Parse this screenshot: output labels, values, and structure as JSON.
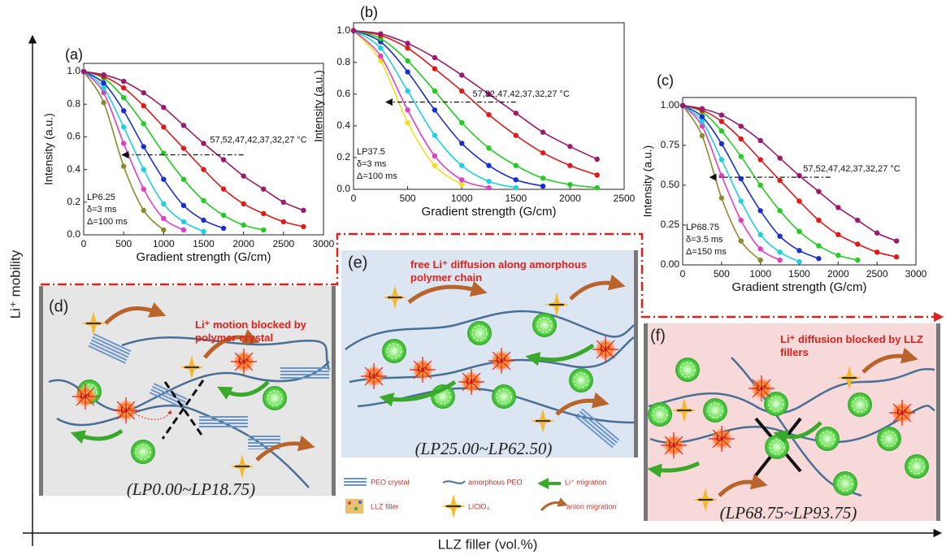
{
  "chart_data": [
    {
      "type": "line",
      "panel": "(a)",
      "xlabel": "Gradient strength (G/cm)",
      "ylabel": "Intensity (a.u.)",
      "annotation": "57,52,47,42,37,32,27 °C",
      "notes": [
        "LP6.25",
        "δ=3 ms",
        "Δ=100 ms"
      ],
      "x": [
        0,
        250,
        500,
        750,
        1000,
        1250,
        1500,
        1750,
        2000,
        2250,
        2500,
        2750
      ],
      "series": [
        {
          "color": "#8a8a2e",
          "values": [
            1,
            0.81,
            0.42,
            0.15,
            0.03,
            null,
            null,
            null,
            null,
            null,
            null,
            null
          ]
        },
        {
          "color": "#e040c0",
          "values": [
            1,
            0.87,
            0.56,
            0.28,
            0.1,
            0.03,
            null,
            null,
            null,
            null,
            null,
            null
          ]
        },
        {
          "color": "#20d0e0",
          "values": [
            1,
            0.9,
            0.66,
            0.4,
            0.19,
            0.08,
            0.02,
            null,
            null,
            null,
            null,
            null
          ]
        },
        {
          "color": "#1a2fd0",
          "values": [
            1,
            0.93,
            0.76,
            0.54,
            0.34,
            0.18,
            0.09,
            0.04,
            null,
            null,
            null,
            null
          ]
        },
        {
          "color": "#22cc22",
          "values": [
            1,
            0.96,
            0.84,
            0.68,
            0.5,
            0.34,
            0.21,
            0.12,
            0.06,
            0.03,
            null,
            null
          ]
        },
        {
          "color": "#e01a1a",
          "values": [
            1,
            0.97,
            0.9,
            0.79,
            0.66,
            0.53,
            0.4,
            0.28,
            0.19,
            0.13,
            0.08,
            0.05
          ]
        },
        {
          "color": "#9c1a6e",
          "values": [
            1,
            0.98,
            0.94,
            0.87,
            0.78,
            0.67,
            0.56,
            0.46,
            0.36,
            0.28,
            0.2,
            0.15
          ]
        }
      ],
      "xlim": [
        0,
        3000
      ],
      "xticks": [
        0,
        500,
        1000,
        1500,
        2000,
        2500,
        3000
      ],
      "ylim": [
        0,
        1.05
      ],
      "yticks": [
        {
          "value": 0,
          "label": "0.0"
        },
        {
          "value": 0.2,
          "label": "0.2"
        },
        {
          "value": 0.4,
          "label": "0.4"
        },
        {
          "value": 0.6,
          "label": "0.6"
        },
        {
          "value": 0.8,
          "label": "0.8"
        },
        {
          "value": 1,
          "label": "1.0"
        }
      ]
    },
    {
      "type": "line",
      "panel": "(b)",
      "xlabel": "Gradient strength (G/cm)",
      "ylabel": "Intensity (a.u.)",
      "annotation": "57,52,47,42,37,32,27 °C",
      "notes": [
        "LP37.5",
        "δ=3 ms",
        "Δ=100 ms"
      ],
      "x": [
        0,
        250,
        500,
        750,
        1000,
        1250,
        1500,
        1750,
        2000,
        2250
      ],
      "series": [
        {
          "color": "#f0e020",
          "values": [
            1,
            0.81,
            0.42,
            0.15,
            0.03,
            null,
            null,
            null,
            null,
            null
          ]
        },
        {
          "color": "#e040c0",
          "values": [
            1,
            0.84,
            0.5,
            0.21,
            0.06,
            0.01,
            null,
            null,
            null,
            null
          ]
        },
        {
          "color": "#20d0e0",
          "values": [
            1,
            0.89,
            0.62,
            0.34,
            0.15,
            0.05,
            0.01,
            null,
            null,
            null
          ]
        },
        {
          "color": "#1a2fd0",
          "values": [
            1,
            0.93,
            0.74,
            0.5,
            0.29,
            0.15,
            0.06,
            0.02,
            null,
            null
          ]
        },
        {
          "color": "#22cc22",
          "values": [
            1,
            0.95,
            0.81,
            0.62,
            0.42,
            0.26,
            0.15,
            0.07,
            0.03,
            0.01
          ]
        },
        {
          "color": "#e01a1a",
          "values": [
            1,
            0.97,
            0.89,
            0.76,
            0.62,
            0.47,
            0.34,
            0.23,
            0.15,
            0.09
          ]
        },
        {
          "color": "#9c1a6e",
          "values": [
            1,
            0.98,
            0.92,
            0.83,
            0.72,
            0.6,
            0.48,
            0.36,
            0.27,
            0.19
          ]
        }
      ],
      "xlim": [
        0,
        2500
      ],
      "xticks": [
        0,
        500,
        1000,
        1500,
        2000,
        2500
      ],
      "ylim": [
        0,
        1.05
      ],
      "yticks": [
        {
          "value": 0,
          "label": "0.0"
        },
        {
          "value": 0.2,
          "label": "0.2"
        },
        {
          "value": 0.4,
          "label": "0.4"
        },
        {
          "value": 0.6,
          "label": "0.6"
        },
        {
          "value": 0.8,
          "label": "0.8"
        },
        {
          "value": 1,
          "label": "1.0"
        }
      ]
    },
    {
      "type": "line",
      "panel": "(c)",
      "xlabel": "Gradient strength (G/cm)",
      "ylabel": "Intensity (a.u.)",
      "annotation": "57,52,47,42,37,32,27 °C",
      "notes": [
        "LP68.75",
        "δ=3.5 ms",
        "Δ=150 ms"
      ],
      "x": [
        0,
        250,
        500,
        750,
        1000,
        1250,
        1500,
        1750,
        2000,
        2250,
        2500,
        2750
      ],
      "series": [
        {
          "color": "#8a8a2e",
          "values": [
            1,
            0.81,
            0.42,
            0.15,
            0.03,
            null,
            null,
            null,
            null,
            null,
            null,
            null
          ]
        },
        {
          "color": "#e040c0",
          "values": [
            1,
            0.87,
            0.56,
            0.28,
            0.1,
            0.03,
            null,
            null,
            null,
            null,
            null,
            null
          ]
        },
        {
          "color": "#20d0e0",
          "values": [
            1,
            0.9,
            0.66,
            0.4,
            0.19,
            0.08,
            0.02,
            null,
            null,
            null,
            null,
            null
          ]
        },
        {
          "color": "#1a2fd0",
          "values": [
            1,
            0.93,
            0.76,
            0.54,
            0.34,
            0.18,
            0.09,
            0.04,
            null,
            null,
            null,
            null
          ]
        },
        {
          "color": "#22cc22",
          "values": [
            1,
            0.96,
            0.84,
            0.68,
            0.5,
            0.34,
            0.21,
            0.12,
            0.06,
            0.03,
            null,
            null
          ]
        },
        {
          "color": "#e01a1a",
          "values": [
            1,
            0.97,
            0.9,
            0.79,
            0.66,
            0.53,
            0.4,
            0.28,
            0.19,
            0.13,
            0.08,
            0.05
          ]
        },
        {
          "color": "#9c1a6e",
          "values": [
            1,
            0.98,
            0.94,
            0.87,
            0.78,
            0.67,
            0.56,
            0.46,
            0.36,
            0.28,
            0.2,
            0.15
          ]
        }
      ],
      "xlim": [
        0,
        3000
      ],
      "xticks": [
        0,
        500,
        1000,
        1500,
        2000,
        2500,
        3000
      ],
      "ylim": [
        0,
        1.05
      ],
      "yticks": [
        {
          "value": 0,
          "label": "0.00"
        },
        {
          "value": 0.25,
          "label": "0.25"
        },
        {
          "value": 0.5,
          "label": "0.50"
        },
        {
          "value": 0.75,
          "label": "0.75"
        },
        {
          "value": 1,
          "label": "1.00"
        }
      ]
    }
  ],
  "figure": {
    "y_axis": "Li⁺ mobility",
    "x_axis": "LLZ filler (vol.%)",
    "ion_label": "Li⁺",
    "panels": [
      {
        "label": "(d)",
        "caption": "Li⁺ motion blocked by polymer crystal",
        "range": "(LP0.00~LP18.75)"
      },
      {
        "label": "(e)",
        "caption": "free Li⁺ diffusion along amorphous polymer chain",
        "range": "(LP25.00~LP62.50)"
      },
      {
        "label": "(f)",
        "caption": "Li⁺ diffusion blocked by LLZ fillers",
        "range": "(LP68.75~LP93.75)"
      }
    ],
    "legend": [
      "PEO crystal",
      "amorphous PEO",
      "Li⁺ migration",
      "LLZ filler",
      "LiClO₄",
      "anion migration"
    ]
  }
}
